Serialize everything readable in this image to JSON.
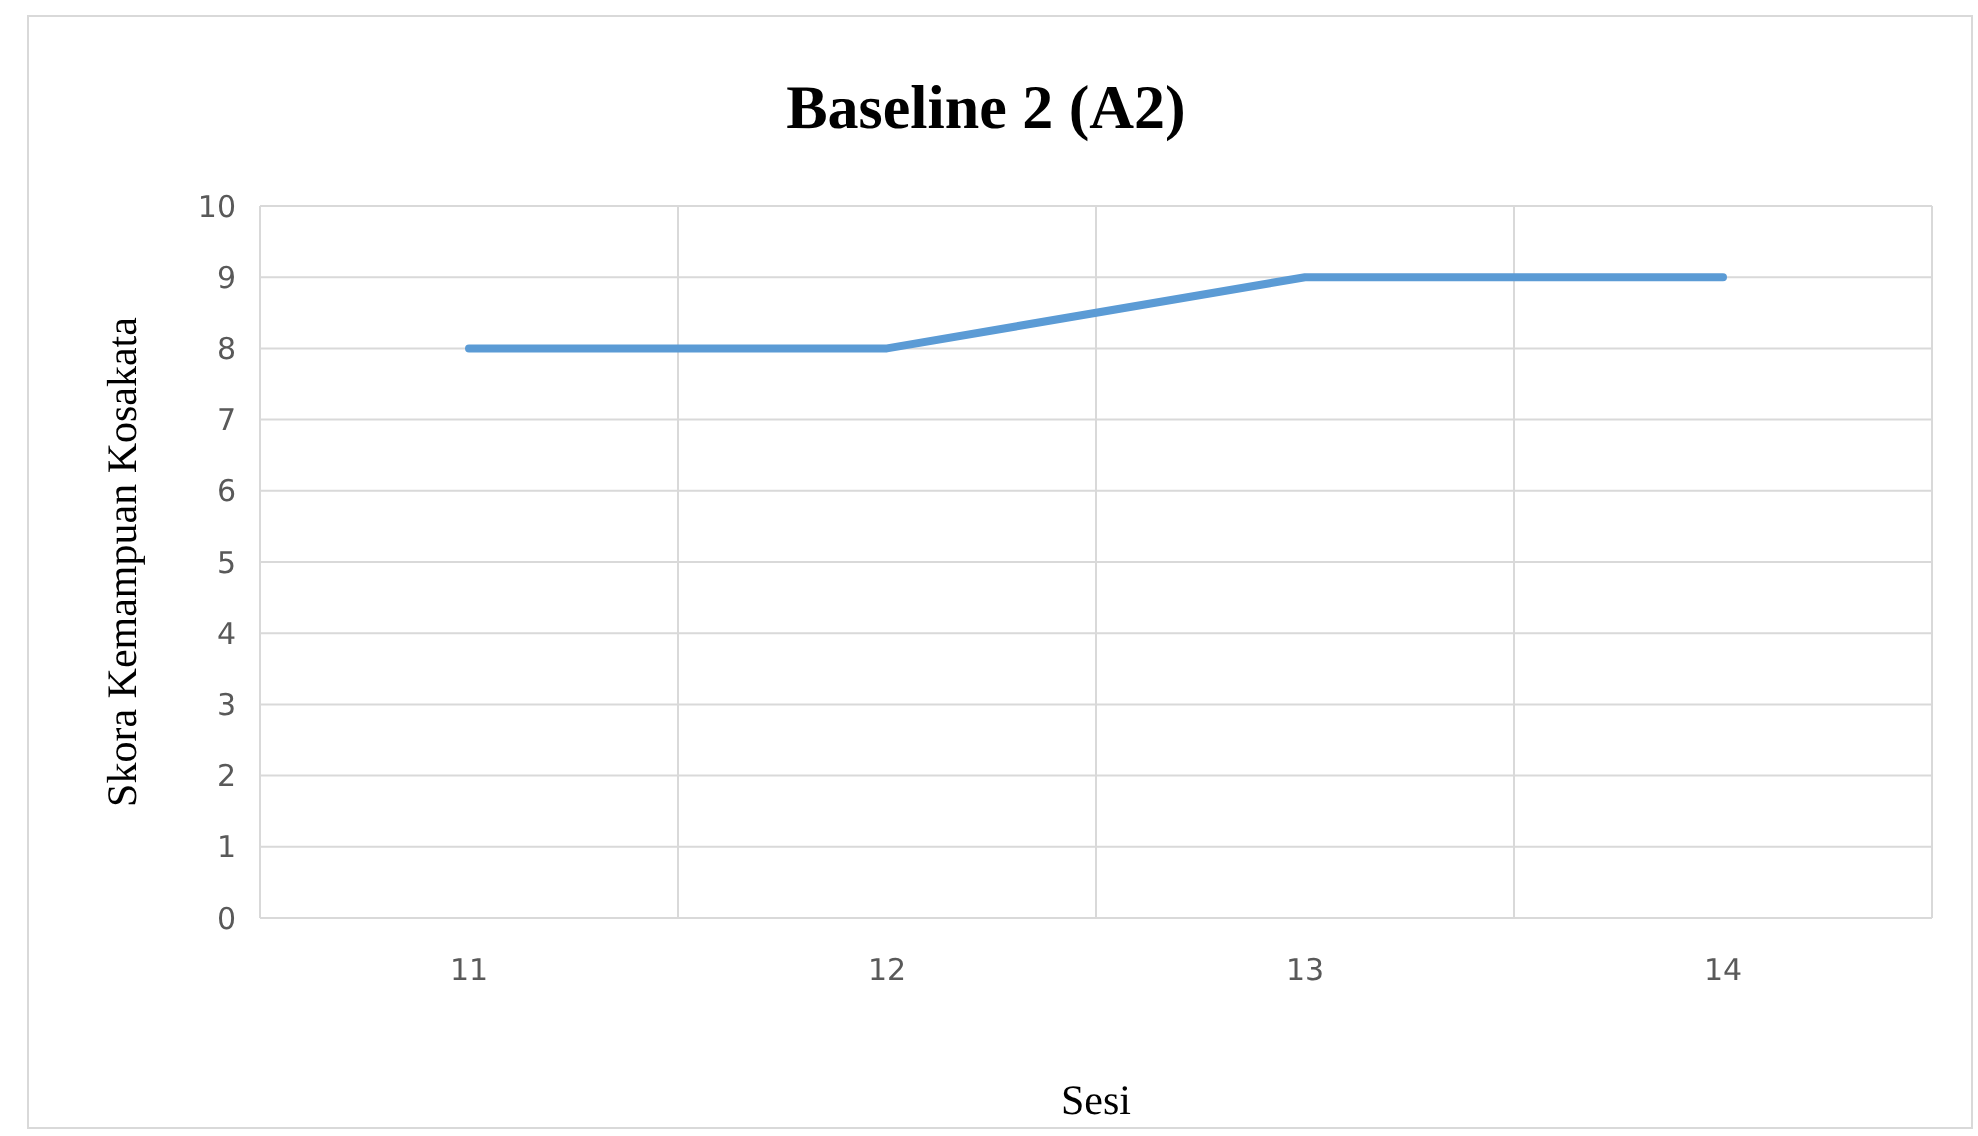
{
  "chart_data": {
    "type": "line",
    "title": "Baseline 2 (A2)",
    "xlabel": "Sesi",
    "ylabel": "Skora Kemampuan Kosakata",
    "categories": [
      "11",
      "12",
      "13",
      "14"
    ],
    "series": [
      {
        "color": "#5b9bd5",
        "values": [
          8,
          8,
          9,
          9
        ]
      }
    ],
    "ylim": [
      0,
      10
    ],
    "yticks": [
      0,
      1,
      2,
      3,
      4,
      5,
      6,
      7,
      8,
      9,
      10
    ],
    "grid": true,
    "marker": "none",
    "line_style": "solid"
  }
}
